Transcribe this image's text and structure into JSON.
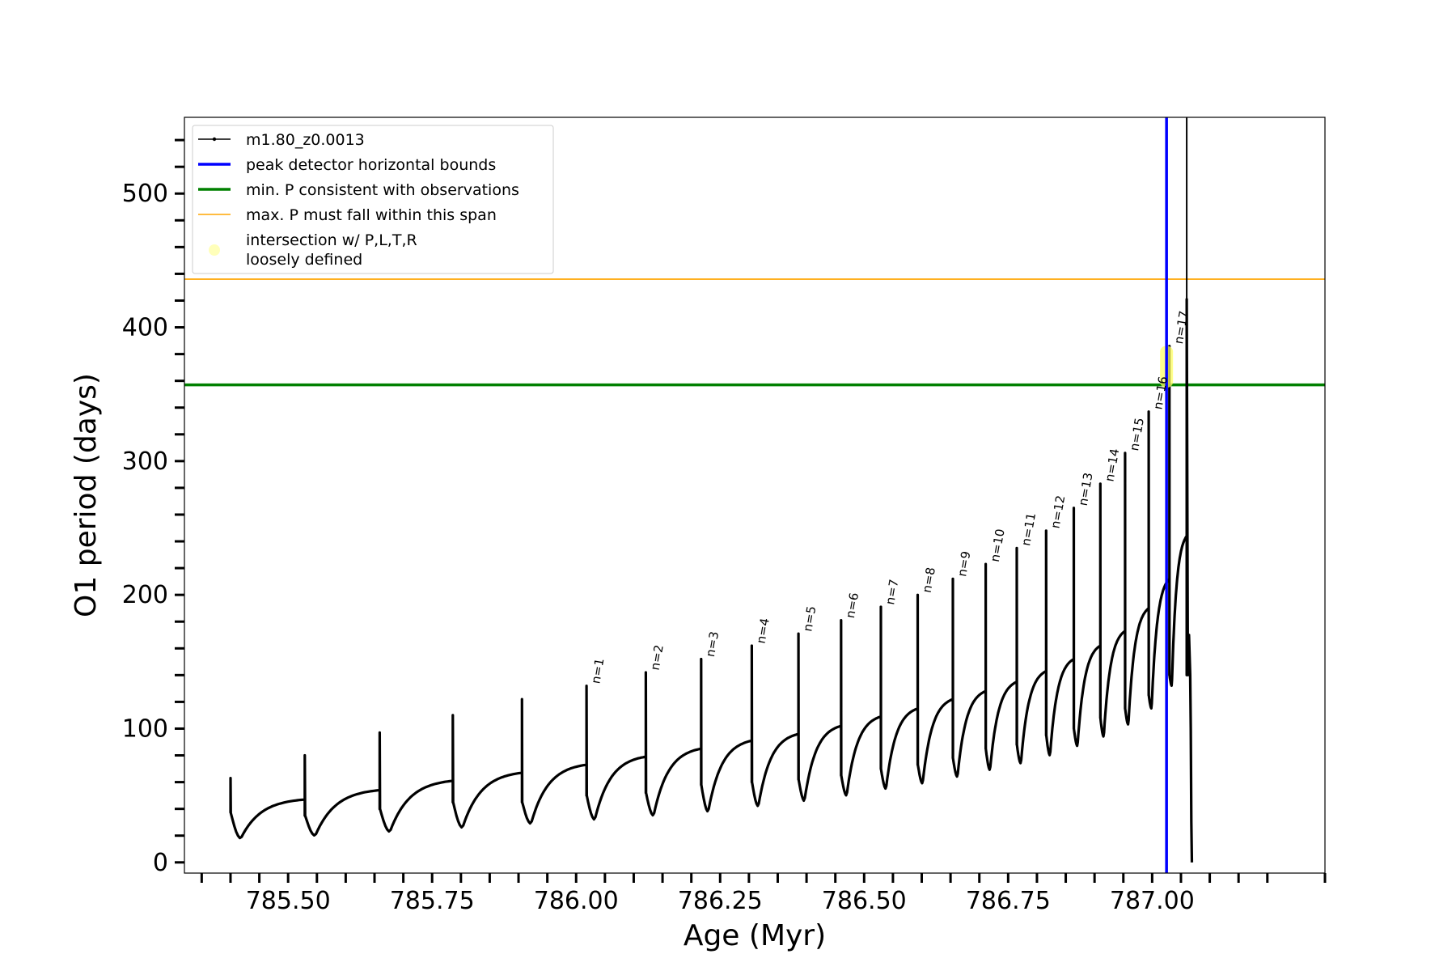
{
  "chart_data": {
    "type": "line",
    "xlabel": "Age (Myr)",
    "ylabel": "O1 period (days)",
    "xlim": [
      785.32,
      787.3
    ],
    "ylim": [
      -8,
      557
    ],
    "x_ticks": [
      785.5,
      785.75,
      786.0,
      786.25,
      786.5,
      786.75,
      787.0
    ],
    "x_tick_labels": [
      "785.50",
      "785.75",
      "786.00",
      "786.25",
      "786.50",
      "786.75",
      "787.00"
    ],
    "y_ticks": [
      0,
      100,
      200,
      300,
      400,
      500
    ],
    "y_tick_labels": [
      "0",
      "100",
      "200",
      "300",
      "400",
      "500"
    ],
    "grid": false,
    "legend_position": "top-left",
    "series": [
      {
        "name": "m1.80_z0.0013",
        "color": "#000000",
        "style": "line with small dot markers",
        "pulses": [
          {
            "x": 785.4,
            "spike": 63,
            "start": 37,
            "dip": 18,
            "end": 47
          },
          {
            "x": 785.529,
            "spike": 80,
            "start": 35,
            "dip": 20,
            "end": 54
          },
          {
            "x": 785.659,
            "spike": 97,
            "start": 40,
            "dip": 23,
            "end": 61
          },
          {
            "x": 785.786,
            "spike": 110,
            "start": 45,
            "dip": 26,
            "end": 67
          },
          {
            "x": 785.906,
            "spike": 122,
            "start": 45,
            "dip": 29,
            "end": 73
          },
          {
            "x": 786.018,
            "spike": 132,
            "start": 50,
            "dip": 32,
            "end": 79
          },
          {
            "x": 786.121,
            "spike": 142,
            "start": 52,
            "dip": 35,
            "end": 85
          },
          {
            "x": 786.217,
            "spike": 152,
            "start": 58,
            "dip": 38,
            "end": 91
          },
          {
            "x": 786.305,
            "spike": 162,
            "start": 60,
            "dip": 42,
            "end": 96
          },
          {
            "x": 786.386,
            "spike": 171,
            "start": 62,
            "dip": 46,
            "end": 102
          },
          {
            "x": 786.46,
            "spike": 181,
            "start": 65,
            "dip": 50,
            "end": 109
          },
          {
            "x": 786.529,
            "spike": 191,
            "start": 70,
            "dip": 55,
            "end": 115
          },
          {
            "x": 786.593,
            "spike": 200,
            "start": 73,
            "dip": 59,
            "end": 122
          },
          {
            "x": 786.654,
            "spike": 212,
            "start": 78,
            "dip": 64,
            "end": 128
          },
          {
            "x": 786.711,
            "spike": 223,
            "start": 85,
            "dip": 69,
            "end": 135
          },
          {
            "x": 786.765,
            "spike": 235,
            "start": 88,
            "dip": 74,
            "end": 143
          },
          {
            "x": 786.816,
            "spike": 248,
            "start": 95,
            "dip": 80,
            "end": 152
          },
          {
            "x": 786.864,
            "spike": 265,
            "start": 100,
            "dip": 87,
            "end": 162
          },
          {
            "x": 786.91,
            "spike": 283,
            "start": 108,
            "dip": 94,
            "end": 173
          },
          {
            "x": 786.953,
            "spike": 306,
            "start": 115,
            "dip": 103,
            "end": 190
          },
          {
            "x": 786.994,
            "spike": 337,
            "start": 125,
            "dip": 115,
            "end": 212
          },
          {
            "x": 787.03,
            "spike": 386,
            "start": 140,
            "dip": 132,
            "end": 244
          }
        ],
        "tail": {
          "x": 787.06,
          "top": 421,
          "end": 0
        }
      },
      {
        "name": "peak detector horizontal bounds",
        "color": "#0000ff",
        "type": "vline",
        "x": 787.025
      },
      {
        "name": "min. P consistent with observations",
        "color": "#008000",
        "type": "hline",
        "y": 357
      },
      {
        "name": "max. P must fall within this span",
        "color": "#ffa500",
        "type": "hline",
        "y": 436
      },
      {
        "name": "intersection w/ P,L,T,R\nloosely defined",
        "color": "#ffff66",
        "type": "marker",
        "x": 787.025,
        "y": 370,
        "y_span": [
          355,
          386
        ]
      }
    ],
    "annotations": [
      {
        "text": "n=1",
        "x": 786.018,
        "y": 132
      },
      {
        "text": "n=2",
        "x": 786.121,
        "y": 142
      },
      {
        "text": "n=3",
        "x": 786.217,
        "y": 152
      },
      {
        "text": "n=4",
        "x": 786.305,
        "y": 162
      },
      {
        "text": "n=5",
        "x": 786.386,
        "y": 171
      },
      {
        "text": "n=6",
        "x": 786.46,
        "y": 181
      },
      {
        "text": "n=7",
        "x": 786.529,
        "y": 191
      },
      {
        "text": "n=8",
        "x": 786.593,
        "y": 200
      },
      {
        "text": "n=9",
        "x": 786.654,
        "y": 212
      },
      {
        "text": "n=10",
        "x": 786.711,
        "y": 223
      },
      {
        "text": "n=11",
        "x": 786.765,
        "y": 235
      },
      {
        "text": "n=12",
        "x": 786.816,
        "y": 248
      },
      {
        "text": "n=13",
        "x": 786.864,
        "y": 265
      },
      {
        "text": "n=14",
        "x": 786.91,
        "y": 283
      },
      {
        "text": "n=15",
        "x": 786.953,
        "y": 306
      },
      {
        "text": "n=16",
        "x": 786.994,
        "y": 337
      },
      {
        "text": "n=17",
        "x": 787.03,
        "y": 386
      }
    ]
  }
}
